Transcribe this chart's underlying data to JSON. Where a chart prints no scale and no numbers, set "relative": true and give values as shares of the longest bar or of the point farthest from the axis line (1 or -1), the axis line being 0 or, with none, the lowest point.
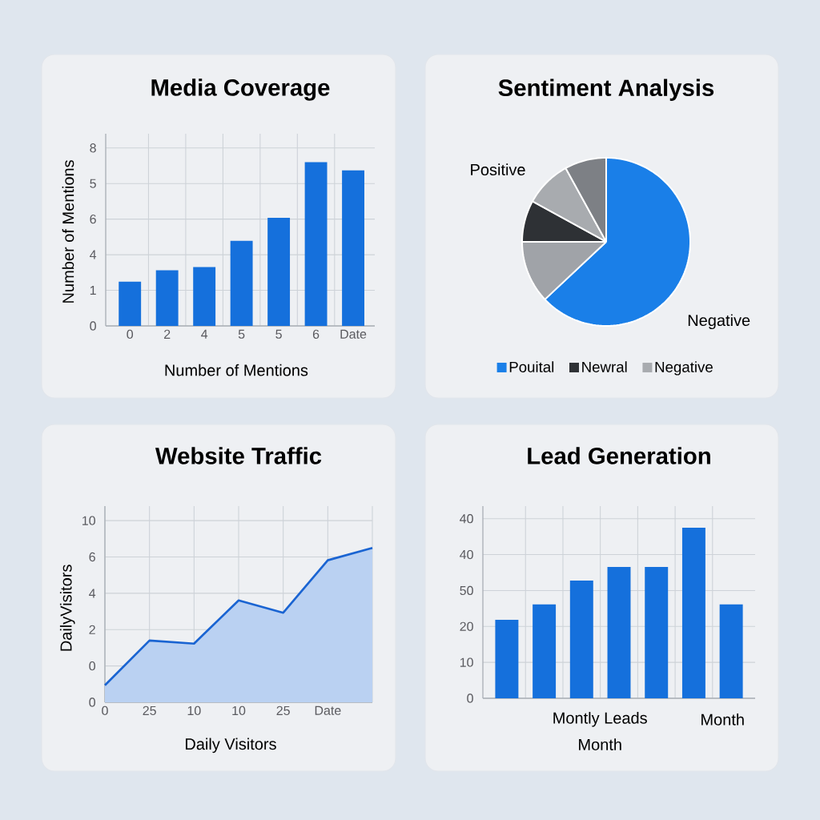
{
  "chart_data": [
    {
      "type": "bar",
      "title": "Media Coverage",
      "xlabel": "Number of Mentions",
      "ylabel": "Number of Mentions",
      "categories": [
        "0",
        "2",
        "4",
        "5",
        "5",
        "6",
        "Date"
      ],
      "values": [
        0.27,
        0.34,
        0.36,
        0.52,
        0.66,
        1,
        0.95
      ],
      "color": "#1570dc",
      "relative": true,
      "grid": true,
      "annotations": [
        "0",
        "1",
        "4",
        "6",
        "5",
        "8"
      ]
    },
    {
      "type": "pie",
      "title": "Sentiment Analysis",
      "categories": [
        "Pouital",
        null,
        "Newral",
        "Negative",
        null
      ],
      "values": [
        63,
        12,
        8,
        9,
        8
      ],
      "colors": [
        "#1a7fe8",
        "#a0a3a8",
        "#2e3135",
        "#a8abaf",
        "#7d8085"
      ],
      "legend": "bottom",
      "annotations": [
        "Positive",
        "Negative"
      ]
    },
    {
      "type": "area",
      "title": "Website Traffic",
      "xlabel": "Daily Visitors",
      "ylabel": "DailyVisitors",
      "categories": [
        "0",
        "25",
        "10",
        "10",
        "25",
        "Date",
        null
      ],
      "values": [
        0.11,
        0.4,
        0.38,
        0.66,
        0.58,
        0.92,
        1
      ],
      "color": "#1a64d2",
      "relative": true,
      "grid": true,
      "annotations": [
        "0",
        "0",
        "2",
        "4",
        "6",
        "10"
      ]
    },
    {
      "type": "bar",
      "title": "Lead Generation",
      "xlabel": "Month",
      "categories": [
        null,
        null,
        null,
        null,
        null,
        null,
        null
      ],
      "values": [
        0.46,
        0.55,
        0.69,
        0.77,
        0.77,
        1,
        0.55
      ],
      "color": "#1570dc",
      "relative": true,
      "grid": true,
      "annotations": [
        "0",
        "10",
        "20",
        "50",
        "40",
        "40",
        "Montly Leads",
        "Month"
      ]
    }
  ]
}
